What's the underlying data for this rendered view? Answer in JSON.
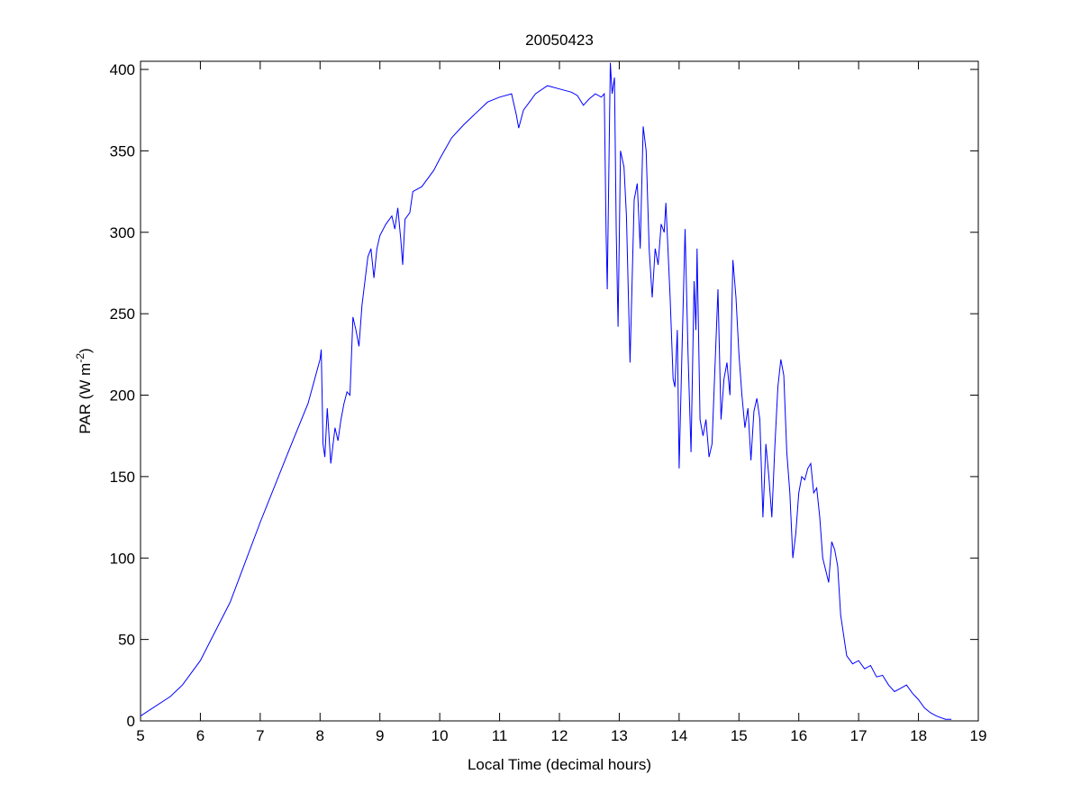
{
  "chart_data": {
    "type": "line",
    "title": "20050423",
    "xlabel": "Local Time (decimal hours)",
    "ylabel_main": "PAR (W m",
    "ylabel_sup": "-2",
    "ylabel_close": ")",
    "xlim": [
      5,
      19
    ],
    "ylim": [
      0,
      405
    ],
    "xticks": [
      5,
      6,
      7,
      8,
      9,
      10,
      11,
      12,
      13,
      14,
      15,
      16,
      17,
      18,
      19
    ],
    "yticks": [
      0,
      50,
      100,
      150,
      200,
      250,
      300,
      350,
      400
    ],
    "grid": false,
    "line_color": "#0000ff",
    "x": [
      5.0,
      5.5,
      5.7,
      6.0,
      6.5,
      7.0,
      7.5,
      7.8,
      8.0,
      8.02,
      8.05,
      8.08,
      8.12,
      8.18,
      8.25,
      8.3,
      8.35,
      8.4,
      8.45,
      8.5,
      8.55,
      8.6,
      8.65,
      8.7,
      8.75,
      8.8,
      8.85,
      8.9,
      8.95,
      9.0,
      9.1,
      9.2,
      9.25,
      9.3,
      9.35,
      9.38,
      9.42,
      9.5,
      9.55,
      9.7,
      9.9,
      10.0,
      10.2,
      10.4,
      10.6,
      10.8,
      11.0,
      11.2,
      11.28,
      11.32,
      11.4,
      11.5,
      11.6,
      11.8,
      12.0,
      12.2,
      12.3,
      12.4,
      12.5,
      12.6,
      12.7,
      12.75,
      12.78,
      12.8,
      12.85,
      12.88,
      12.92,
      12.95,
      12.98,
      13.02,
      13.08,
      13.12,
      13.18,
      13.25,
      13.3,
      13.35,
      13.4,
      13.45,
      13.5,
      13.55,
      13.6,
      13.65,
      13.7,
      13.75,
      13.78,
      13.85,
      13.9,
      13.93,
      13.97,
      14.0,
      14.05,
      14.1,
      14.15,
      14.2,
      14.25,
      14.28,
      14.3,
      14.35,
      14.4,
      14.45,
      14.5,
      14.55,
      14.65,
      14.7,
      14.75,
      14.8,
      14.85,
      14.9,
      14.95,
      15.0,
      15.05,
      15.1,
      15.15,
      15.2,
      15.25,
      15.3,
      15.35,
      15.4,
      15.45,
      15.5,
      15.55,
      15.6,
      15.65,
      15.7,
      15.75,
      15.8,
      15.85,
      15.9,
      15.95,
      16.0,
      16.05,
      16.1,
      16.15,
      16.2,
      16.25,
      16.3,
      16.35,
      16.4,
      16.5,
      16.55,
      16.6,
      16.65,
      16.7,
      16.8,
      16.9,
      17.0,
      17.1,
      17.2,
      17.3,
      17.4,
      17.5,
      17.6,
      17.7,
      17.8,
      17.9,
      18.0,
      18.1,
      18.2,
      18.3,
      18.45,
      18.55
    ],
    "y": [
      3,
      15,
      22,
      37,
      73,
      122,
      168,
      195,
      222,
      228,
      170,
      162,
      192,
      158,
      180,
      172,
      185,
      195,
      202,
      200,
      248,
      240,
      230,
      255,
      270,
      285,
      290,
      272,
      290,
      298,
      305,
      310,
      302,
      315,
      295,
      280,
      308,
      312,
      325,
      328,
      338,
      345,
      358,
      366,
      373,
      380,
      383,
      385,
      372,
      364,
      375,
      380,
      385,
      390,
      388,
      386,
      384,
      378,
      382,
      385,
      383,
      385,
      300,
      265,
      404,
      385,
      395,
      300,
      242,
      350,
      340,
      310,
      220,
      320,
      330,
      290,
      365,
      350,
      290,
      260,
      290,
      280,
      305,
      300,
      318,
      260,
      210,
      205,
      240,
      155,
      230,
      302,
      225,
      165,
      270,
      240,
      290,
      185,
      175,
      185,
      162,
      170,
      265,
      185,
      210,
      220,
      200,
      283,
      260,
      225,
      200,
      180,
      192,
      160,
      190,
      198,
      185,
      125,
      170,
      150,
      125,
      168,
      205,
      222,
      212,
      165,
      140,
      100,
      115,
      140,
      150,
      148,
      155,
      158,
      140,
      143,
      125,
      100,
      85,
      110,
      105,
      95,
      65,
      40,
      35,
      37,
      32,
      34,
      27,
      28,
      22,
      18,
      20,
      22,
      17,
      13,
      8,
      5,
      3,
      1,
      1
    ]
  }
}
